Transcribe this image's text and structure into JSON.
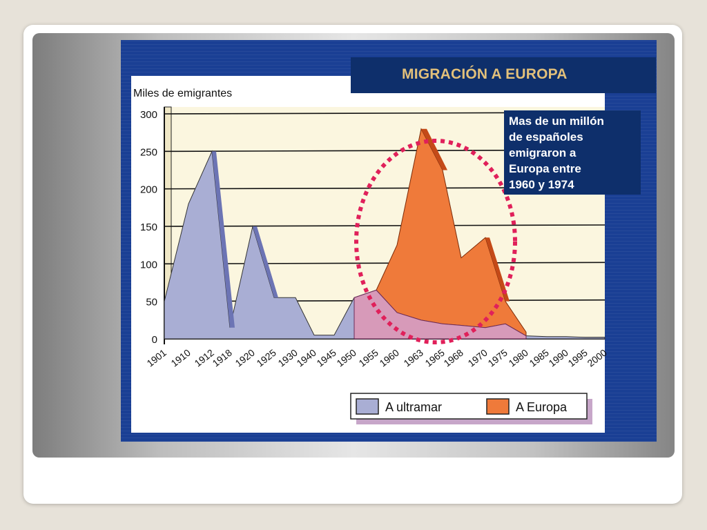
{
  "colors": {
    "ultramar_fill": "#a9aed4",
    "europa_fill": "#ef7a3a",
    "europa_side": "#c44a18",
    "mixed_fill": "#d79ab9",
    "ellipse": "#e0205a",
    "frame_blue": "#1a3f94",
    "title_box": "#0e2f6b",
    "title_text": "#e2c07a"
  },
  "chart_data": {
    "type": "area",
    "title": "MIGRACIÓN A EUROPA",
    "ylabel": "Miles de emigrantes",
    "ylim": [
      0,
      300
    ],
    "yticks": [
      "300",
      "250",
      "200",
      "150",
      "100",
      "50",
      "0"
    ],
    "categories": [
      "1901",
      "1910",
      "1912",
      "1918",
      "1920",
      "1925",
      "1930",
      "1940",
      "1945",
      "1950",
      "1955",
      "1960",
      "1963",
      "1965",
      "1968",
      "1970",
      "1975",
      "1980",
      "1985",
      "1990",
      "1995",
      "2000"
    ],
    "series": [
      {
        "name": "A ultramar",
        "values": [
          50,
          180,
          250,
          15,
          150,
          55,
          55,
          5,
          5,
          55,
          65,
          35,
          25,
          20,
          18,
          15,
          20,
          4,
          3,
          3,
          2,
          2
        ]
      },
      {
        "name": "A Europa",
        "values": [
          0,
          0,
          0,
          0,
          0,
          0,
          0,
          0,
          0,
          0,
          0,
          90,
          255,
          205,
          90,
          120,
          30,
          5,
          5,
          4,
          3,
          3
        ]
      }
    ],
    "legend": "bottom",
    "grid": true,
    "annotation": "Mas de un millón de españoles emigraron a Europa entre 1960 y 1974",
    "annotation_lines": [
      "Mas de un millón",
      "de españoles",
      "emigraron a",
      "Europa entre",
      "1960 y  1974"
    ],
    "highlight": "ellipse around 1955-1980"
  }
}
